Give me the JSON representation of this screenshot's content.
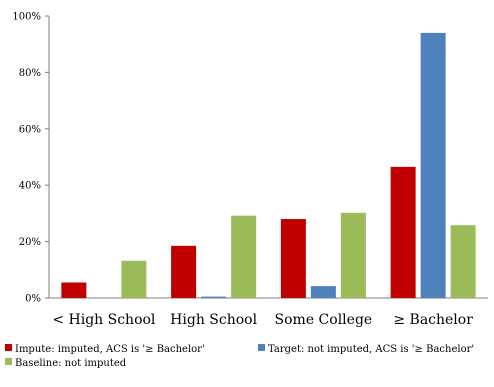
{
  "chart_data": {
    "type": "bar",
    "categories": [
      "< High School",
      "High School",
      "Some College",
      "≥ Bachelor"
    ],
    "series": [
      {
        "name": "Impute: imputed, ACS is '≥ Bachelor'",
        "color": "#c00000",
        "values": [
          5.5,
          18.5,
          28,
          46.5
        ]
      },
      {
        "name": "Target: not imputed, ACS is '≥ Bachelor'",
        "color": "#4f81bd",
        "values": [
          0,
          0.5,
          4.2,
          94
        ]
      },
      {
        "name": "Baseline: not imputed",
        "color": "#9bbb59",
        "values": [
          13.2,
          29.2,
          30.2,
          25.8
        ]
      }
    ],
    "ylim": [
      0,
      100
    ],
    "yticks": [
      0,
      20,
      40,
      60,
      80,
      100
    ],
    "ytick_labels": [
      "0%",
      "20%",
      "40%",
      "60%",
      "80%",
      "100%"
    ],
    "grid": false,
    "legend_position": "bottom"
  }
}
